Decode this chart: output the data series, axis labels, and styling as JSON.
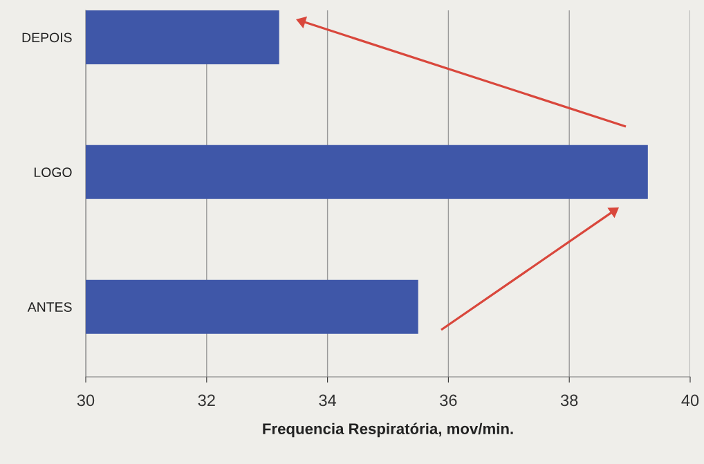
{
  "chart_data": {
    "type": "bar",
    "orientation": "horizontal",
    "categories": [
      "DEPOIS",
      "LOGO",
      "ANTES"
    ],
    "values": [
      33.2,
      39.3,
      35.5
    ],
    "color": "#3f57a8",
    "xlabel": "Frequencia Respiratória, mov/min.",
    "xlim": [
      30,
      40
    ],
    "xticks": [
      30,
      32,
      34,
      36,
      38,
      40
    ],
    "grid": "x"
  }
}
